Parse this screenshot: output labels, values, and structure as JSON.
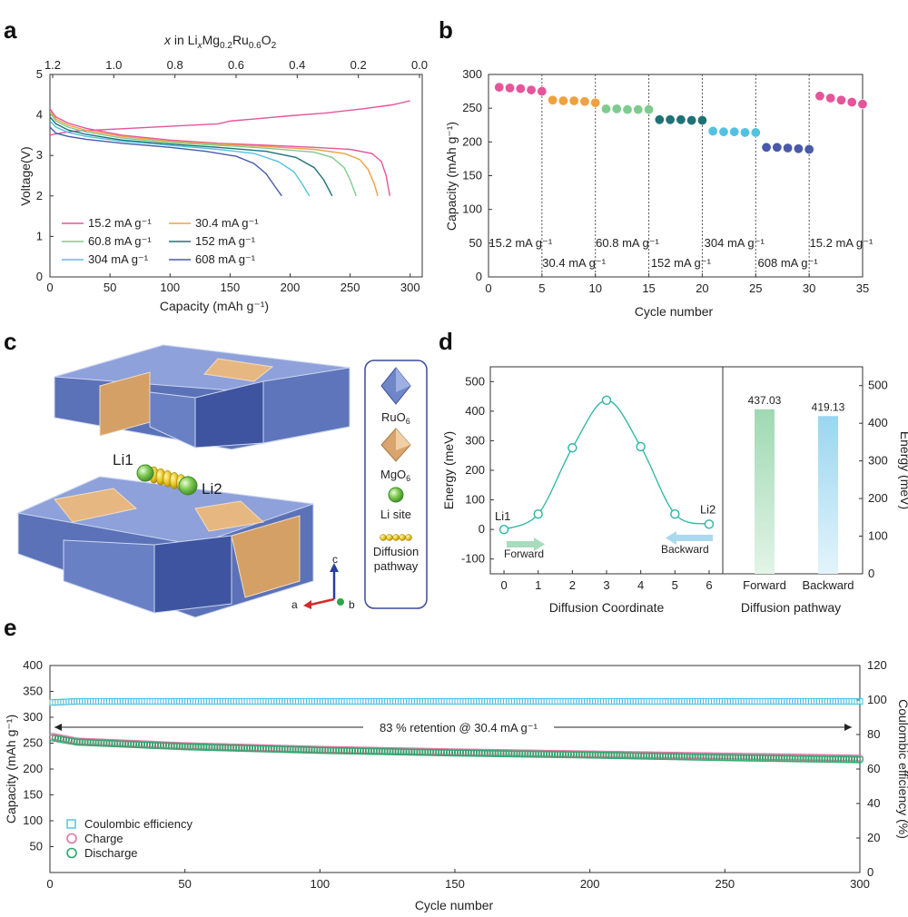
{
  "panels": [
    {
      "letter": "a"
    },
    {
      "letter": "b"
    },
    {
      "letter": "c"
    },
    {
      "letter": "d"
    },
    {
      "letter": "e"
    }
  ],
  "colors": {
    "r15": "#e5559a",
    "r30": "#f0a13f",
    "r60": "#7fcb8f",
    "r152": "#1f7178",
    "r304": "#54c1e0",
    "r608": "#4a5aa8",
    "ce": "#4fbfe0",
    "charge": "#e073a8",
    "discharge": "#2fa56a",
    "barF": "#b6e3c4",
    "barB": "#b3e2f4",
    "neb": "#2bb4a4",
    "ru": "#6f86c8",
    "mg": "#e0b483",
    "li": "#74c24c",
    "path": "#e6c21a"
  },
  "chart_data": [
    {
      "id": "a",
      "type": "line",
      "title": "",
      "top_axis_prefix": "x",
      "top_axis_label": " in Li",
      "top_axis_parts": [
        "x",
        "Mg",
        "0.2",
        "Ru",
        "0.6",
        "O",
        "2"
      ],
      "top_ticks": [
        "1.2",
        "1.0",
        "0.8",
        "0.6",
        "0.4",
        "0.2",
        "0.0"
      ],
      "xlabel": "Capacity (mAh g⁻¹)",
      "ylabel": "Voltage(V)",
      "xlim": [
        0,
        310
      ],
      "ylim": [
        0,
        5
      ],
      "xticks": [
        "0",
        "50",
        "100",
        "150",
        "200",
        "250",
        "300"
      ],
      "yticks": [
        "0",
        "1",
        "2",
        "3",
        "4",
        "5"
      ],
      "legend": [
        "15.2 mA g⁻¹",
        "30.4 mA g⁻¹",
        "60.8 mA g⁻¹",
        "152 mA g⁻¹",
        "304 mA g⁻¹",
        "608 mA g⁻¹"
      ],
      "series": [
        {
          "name": "15.2 mA g⁻¹",
          "color": "r15",
          "x": [
            0,
            5,
            15,
            30,
            60,
            100,
            140,
            180,
            220,
            250,
            268,
            276,
            280,
            283
          ],
          "y": [
            4.15,
            3.95,
            3.8,
            3.67,
            3.5,
            3.38,
            3.3,
            3.25,
            3.2,
            3.15,
            3.05,
            2.85,
            2.5,
            2.0
          ]
        },
        {
          "name": "15.2 charge",
          "color": "r15",
          "x": [
            0,
            3,
            8,
            20,
            60,
            100,
            140,
            150,
            170,
            200,
            230,
            260,
            285,
            300
          ],
          "y": [
            3.5,
            3.52,
            3.55,
            3.6,
            3.66,
            3.72,
            3.78,
            3.85,
            3.9,
            3.98,
            4.05,
            4.15,
            4.25,
            4.35
          ]
        },
        {
          "name": "30.4 mA g⁻¹",
          "color": "r30",
          "x": [
            0,
            5,
            15,
            30,
            60,
            100,
            140,
            180,
            220,
            245,
            258,
            265,
            270,
            273
          ],
          "y": [
            4.1,
            3.9,
            3.75,
            3.62,
            3.47,
            3.35,
            3.28,
            3.22,
            3.15,
            3.05,
            2.9,
            2.65,
            2.3,
            2.0
          ]
        },
        {
          "name": "60.8 mA g⁻¹",
          "color": "r60",
          "x": [
            0,
            5,
            15,
            30,
            60,
            100,
            140,
            180,
            220,
            235,
            245,
            250,
            255
          ],
          "y": [
            4.05,
            3.85,
            3.7,
            3.58,
            3.43,
            3.32,
            3.25,
            3.18,
            3.08,
            2.95,
            2.7,
            2.4,
            2.0
          ]
        },
        {
          "name": "152 mA g⁻¹",
          "color": "r152",
          "x": [
            0,
            5,
            15,
            30,
            60,
            100,
            140,
            180,
            205,
            220,
            228,
            235
          ],
          "y": [
            3.95,
            3.78,
            3.63,
            3.52,
            3.38,
            3.28,
            3.2,
            3.1,
            2.95,
            2.7,
            2.4,
            2.0
          ]
        },
        {
          "name": "304 mA g⁻¹",
          "color": "r304",
          "x": [
            0,
            5,
            15,
            30,
            60,
            100,
            140,
            170,
            190,
            203,
            210,
            216
          ],
          "y": [
            3.85,
            3.7,
            3.57,
            3.47,
            3.35,
            3.25,
            3.15,
            3.05,
            2.85,
            2.6,
            2.3,
            2.0
          ]
        },
        {
          "name": "608 mA g⁻¹",
          "color": "r608",
          "x": [
            0,
            5,
            15,
            30,
            60,
            100,
            130,
            155,
            170,
            180,
            187,
            193
          ],
          "y": [
            3.7,
            3.55,
            3.47,
            3.4,
            3.3,
            3.2,
            3.1,
            2.98,
            2.8,
            2.55,
            2.25,
            2.0
          ]
        }
      ]
    },
    {
      "id": "b",
      "type": "scatter",
      "xlabel": "Cycle number",
      "ylabel": "Capacity (mAh g⁻¹)",
      "xlim": [
        0,
        35
      ],
      "ylim": [
        0,
        300
      ],
      "xticks": [
        "0",
        "5",
        "10",
        "15",
        "20",
        "25",
        "30",
        "35"
      ],
      "yticks": [
        "0",
        "50",
        "100",
        "150",
        "200",
        "250",
        "300"
      ],
      "dividers": [
        5,
        10,
        15,
        20,
        25,
        30
      ],
      "groups": [
        {
          "label": "15.2 mA g⁻¹",
          "color": "r15",
          "row": "upper",
          "x": [
            1,
            2,
            3,
            4,
            5
          ],
          "y": [
            281,
            280,
            279,
            277,
            275
          ]
        },
        {
          "label": "30.4 mA g⁻¹",
          "color": "r30",
          "row": "lower",
          "x": [
            6,
            7,
            8,
            9,
            10
          ],
          "y": [
            262,
            261,
            261,
            260,
            258
          ]
        },
        {
          "label": "60.8 mA g⁻¹",
          "color": "r60",
          "row": "upper",
          "x": [
            11,
            12,
            13,
            14,
            15
          ],
          "y": [
            249,
            249,
            248,
            248,
            248
          ]
        },
        {
          "label": "152 mA g⁻¹",
          "color": "r152",
          "row": "lower",
          "x": [
            16,
            17,
            18,
            19,
            20
          ],
          "y": [
            233,
            233,
            233,
            232,
            232
          ]
        },
        {
          "label": "304 mA g⁻¹",
          "color": "r304",
          "row": "upper",
          "x": [
            21,
            22,
            23,
            24,
            25
          ],
          "y": [
            216,
            215,
            215,
            214,
            214
          ]
        },
        {
          "label": "608 mA g⁻¹",
          "color": "r608",
          "row": "lower",
          "x": [
            26,
            27,
            28,
            29,
            30
          ],
          "y": [
            192,
            192,
            191,
            190,
            189
          ]
        },
        {
          "label": "15.2 mA g⁻¹",
          "color": "r15",
          "row": "upper",
          "x": [
            31,
            32,
            33,
            34,
            35
          ],
          "y": [
            268,
            265,
            262,
            259,
            256
          ]
        }
      ]
    },
    {
      "id": "d-left",
      "type": "line",
      "xlabel": "Diffusion Coordinate",
      "ylabel": "Energy (meV)",
      "xlim": [
        -0.4,
        6.4
      ],
      "ylim": [
        -150,
        550
      ],
      "xticks": [
        "0",
        "1",
        "2",
        "3",
        "4",
        "5",
        "6"
      ],
      "yticks": [
        "-100",
        "0",
        "100",
        "200",
        "300",
        "400",
        "500"
      ],
      "x": [
        0,
        1,
        2,
        3,
        4,
        5,
        6
      ],
      "y": [
        0,
        52,
        276,
        437.03,
        280,
        52,
        17.9
      ],
      "labels": {
        "start": "Li1",
        "end": "Li2",
        "forward": "Forward",
        "backward": "Backward"
      }
    },
    {
      "id": "d-right",
      "type": "bar",
      "xlabel": "Diffusion pathway",
      "ylabel": "Energy (meV)",
      "ylim": [
        0,
        550
      ],
      "yticks": [
        "0",
        "100",
        "200",
        "300",
        "400",
        "500"
      ],
      "categories": [
        "Forward",
        "Backward"
      ],
      "values": [
        437.03,
        419.13
      ],
      "value_labels": [
        "437.03",
        "419.13"
      ]
    },
    {
      "id": "e",
      "type": "scatter",
      "xlabel": "Cycle number",
      "ylabel": "Capacity (mAh g⁻¹)",
      "y2label": "Coulombic efficiency (%)",
      "xlim": [
        0,
        300
      ],
      "ylim": [
        0,
        400
      ],
      "y2lim": [
        0,
        120
      ],
      "xticks": [
        "0",
        "50",
        "100",
        "150",
        "200",
        "250",
        "300"
      ],
      "yticks": [
        "50",
        "100",
        "150",
        "200",
        "250",
        "300",
        "350",
        "400"
      ],
      "y2ticks": [
        "0",
        "20",
        "40",
        "60",
        "80",
        "100",
        "120"
      ],
      "annotation": "83 % retention @ 30.4 mA g⁻¹",
      "legend": [
        "Coulombic efficiency",
        "Charge",
        "Discharge"
      ],
      "series": [
        {
          "name": "Coulombic efficiency",
          "axis": "right",
          "color": "ce",
          "marker": "square",
          "start": 98.5,
          "end": 99.2,
          "cycles": 300
        },
        {
          "name": "Charge",
          "axis": "left",
          "color": "charge",
          "marker": "circle",
          "points": [
            [
              1,
              263
            ],
            [
              10,
              254
            ],
            [
              50,
              245
            ],
            [
              100,
              238
            ],
            [
              150,
              233
            ],
            [
              200,
              229
            ],
            [
              250,
              225
            ],
            [
              300,
              221
            ]
          ]
        },
        {
          "name": "Discharge",
          "axis": "left",
          "color": "discharge",
          "marker": "circle",
          "points": [
            [
              1,
              260
            ],
            [
              10,
              252
            ],
            [
              50,
              243
            ],
            [
              100,
              236
            ],
            [
              150,
              231
            ],
            [
              200,
              227
            ],
            [
              250,
              222
            ],
            [
              300,
              218
            ]
          ]
        }
      ]
    }
  ],
  "structure": {
    "labels": {
      "li1": "Li1",
      "li2": "Li2",
      "ru": "RuO",
      "ru_sub": "6",
      "mg": "MgO",
      "mg_sub": "6",
      "li_site": "Li site",
      "diff1": "Diffusion",
      "diff2": "pathway"
    },
    "axes": {
      "a": "a",
      "b": "b",
      "c": "c"
    }
  }
}
